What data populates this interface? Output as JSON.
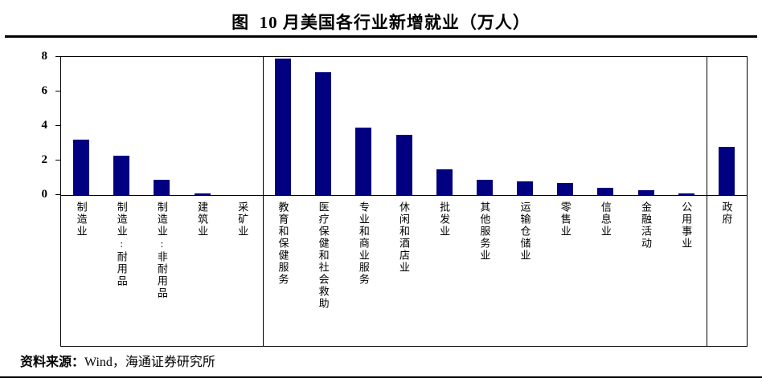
{
  "title": "图  10 月美国各行业新增就业（万人）",
  "source": {
    "prefix": "资料来源：",
    "text": "Wind，海通证券研究所"
  },
  "chart_data": {
    "type": "bar",
    "title": "图 10 月美国各行业新增就业（万人）",
    "unit": "万人",
    "categories": [
      "制造业",
      "制造业:耐用品",
      "制造业:非耐用品",
      "建筑业",
      "采矿业",
      "教育和保健服务",
      "医疗保健和社会救助",
      "专业和商业服务",
      "休闲和酒店业",
      "批发业",
      "其他服务业",
      "运输仓储业",
      "零售业",
      "信息业",
      "金融活动",
      "公用事业",
      "政府"
    ],
    "values": [
      3.2,
      2.3,
      0.9,
      0.1,
      0,
      7.9,
      7.1,
      3.9,
      3.5,
      1.5,
      0.9,
      0.8,
      0.7,
      0.4,
      0.3,
      0.1,
      2.8
    ],
    "ylim": [
      0,
      8
    ],
    "yticks": [
      0,
      2,
      4,
      6,
      8
    ],
    "xlabel": "",
    "ylabel": "",
    "grid": false,
    "legend": false,
    "bar_color": "#000080",
    "axis_color": "#000000",
    "separators_after_index": [
      4,
      15
    ]
  }
}
